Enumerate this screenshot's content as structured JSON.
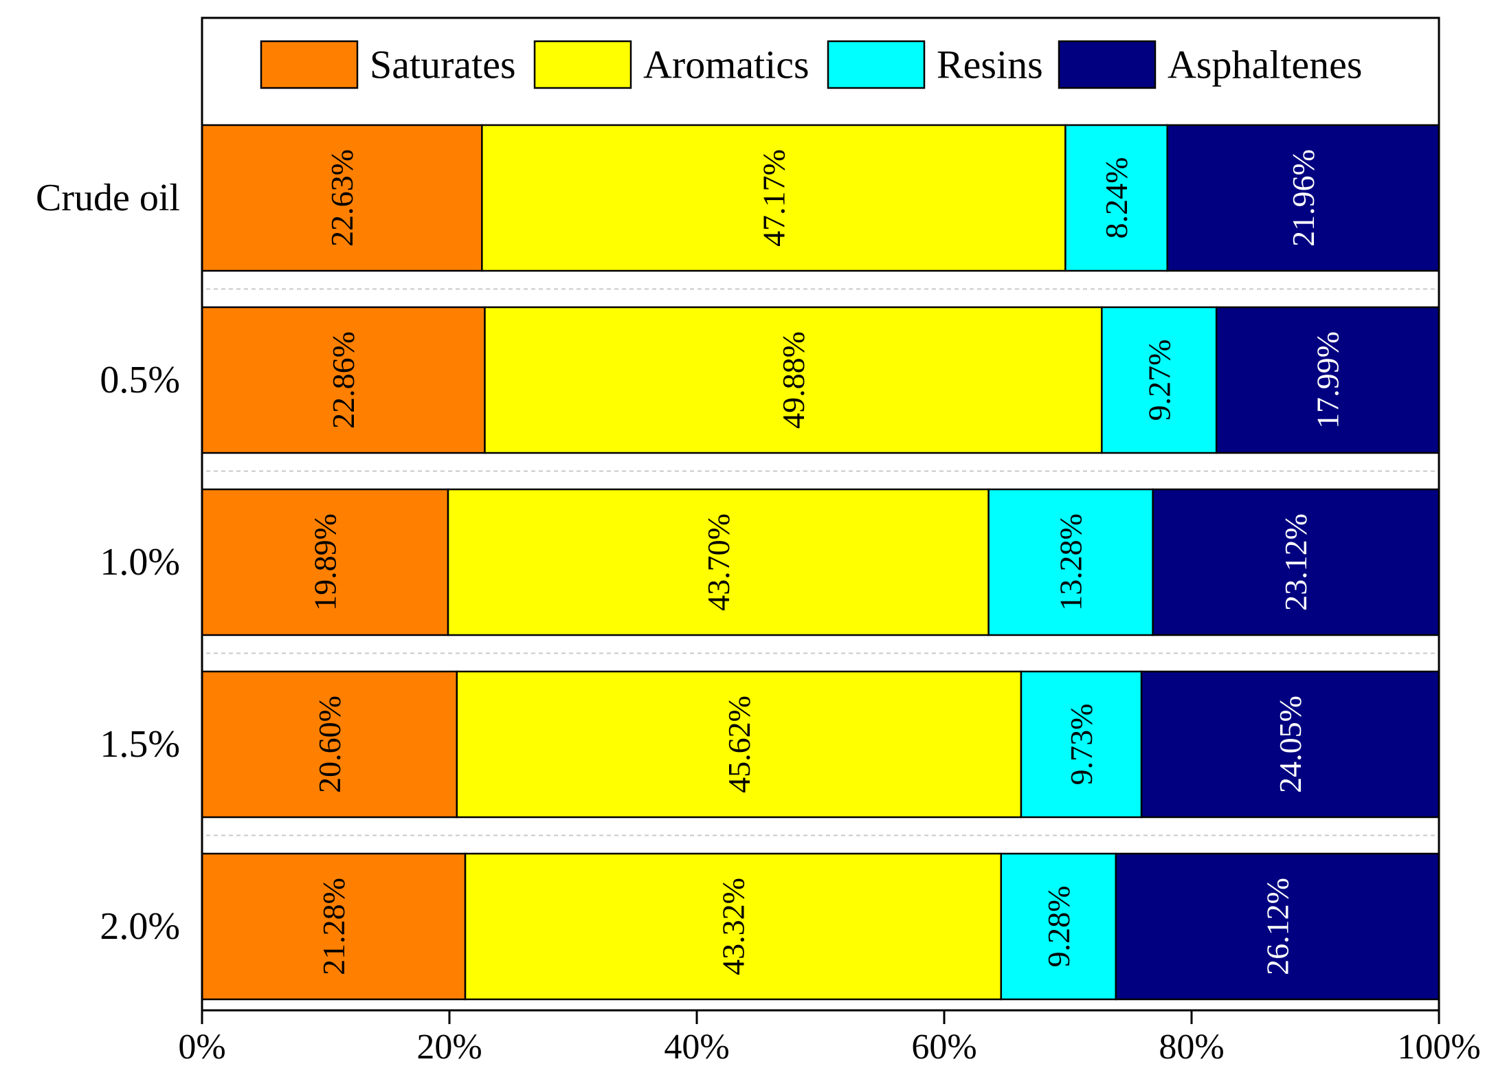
{
  "chart_data": {
    "type": "bar",
    "orientation": "horizontal",
    "stacked": true,
    "normalized": true,
    "title": "",
    "xlabel": "",
    "ylabel": "",
    "xlim": [
      0,
      100
    ],
    "x_tick_values": [
      0,
      20,
      40,
      60,
      80,
      100
    ],
    "x_tick_labels": [
      "0%",
      "20%",
      "40%",
      "60%",
      "80%",
      "100%"
    ],
    "categories": [
      "Crude oil",
      "0.5%",
      "1.0%",
      "1.5%",
      "2.0%"
    ],
    "legend_position": "top",
    "series": [
      {
        "name": "Saturates",
        "color": "#ff8000",
        "values": [
          22.63,
          22.86,
          19.89,
          20.6,
          21.28
        ],
        "labels": [
          "22.63%",
          "22.86%",
          "19.89%",
          "20.60%",
          "21.28%"
        ],
        "label_color": "#000000"
      },
      {
        "name": "Aromatics",
        "color": "#ffff00",
        "values": [
          47.17,
          49.88,
          43.7,
          45.62,
          43.32
        ],
        "labels": [
          "47.17%",
          "49.88%",
          "43.70%",
          "45.62%",
          "43.32%"
        ],
        "label_color": "#000000"
      },
      {
        "name": "Resins",
        "color": "#00ffff",
        "values": [
          8.24,
          9.27,
          13.28,
          9.73,
          9.28
        ],
        "labels": [
          "8.24%",
          "9.27%",
          "13.28%",
          "9.73%",
          "9.28%"
        ],
        "label_color": "#000000"
      },
      {
        "name": "Asphaltenes",
        "color": "#000080",
        "values": [
          21.96,
          17.99,
          23.12,
          24.05,
          26.12
        ],
        "labels": [
          "21.96%",
          "17.99%",
          "23.12%",
          "24.05%",
          "26.12%"
        ],
        "label_color": "#ffffff"
      }
    ]
  }
}
